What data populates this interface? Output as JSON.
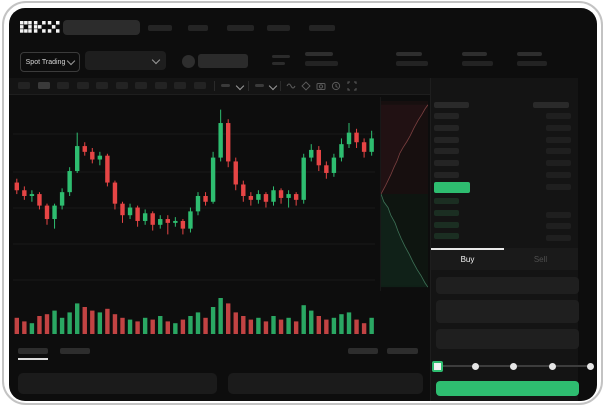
{
  "brand": {
    "name": "OKX"
  },
  "colors": {
    "up_green": "#2ebd70",
    "down_red": "#e64545",
    "bg": "#0d0d0d",
    "panel": "#141414"
  },
  "header": {
    "nav_item_count": 5,
    "search": {
      "placeholder": ""
    }
  },
  "market_bar": {
    "mode_selector_label": "Spot Trading",
    "stat_group_count": 4
  },
  "toolbar": {
    "timeframe_button_count": 10,
    "active_timeframe_index": 1,
    "icon_names": [
      "indicator-wave-icon",
      "draw-tool-icon",
      "camera-icon",
      "alert-icon",
      "fullscreen-icon"
    ]
  },
  "order_book": {
    "view_icons": [
      "orderbook-combined-icon",
      "orderbook-bids-icon",
      "orderbook-asks-icon"
    ],
    "ask_row_count": 6,
    "bid_row_count": 4,
    "last_price_highlight_color": "#2ebd70"
  },
  "trade_panel": {
    "tabs": [
      {
        "label": "Buy"
      },
      {
        "label": "Sell"
      }
    ],
    "active_tab": "Buy",
    "field_count": 3,
    "slider": {
      "stop_count": 5,
      "value_index": 0
    },
    "buy_button": {
      "label": "",
      "color": "#2ebd70"
    }
  },
  "bottom_bar": {
    "left_tab_count": 2,
    "right_tab_count": 2,
    "active_tab_index": 0,
    "panel_count": 2
  },
  "chart_data": {
    "type": "candlestick",
    "title": "",
    "axis_labels_visible": false,
    "grid": "horizontal-only",
    "price_scale": [
      0,
      100
    ],
    "up_color": "#2ebd70",
    "down_color": "#e64545",
    "candles_ohlc": [
      [
        57,
        59,
        51,
        53
      ],
      [
        53,
        55,
        48,
        50
      ],
      [
        50,
        53,
        47,
        51
      ],
      [
        51,
        52,
        43,
        45
      ],
      [
        45,
        46,
        35,
        38
      ],
      [
        38,
        46,
        33,
        45
      ],
      [
        45,
        54,
        43,
        52
      ],
      [
        52,
        65,
        50,
        63
      ],
      [
        63,
        83,
        62,
        76
      ],
      [
        76,
        78,
        71,
        73
      ],
      [
        73,
        75,
        67,
        69
      ],
      [
        69,
        73,
        66,
        71
      ],
      [
        71,
        72,
        55,
        57
      ],
      [
        57,
        58,
        43,
        46
      ],
      [
        46,
        47,
        36,
        40
      ],
      [
        40,
        46,
        38,
        44
      ],
      [
        44,
        45,
        34,
        37
      ],
      [
        37,
        43,
        35,
        41
      ],
      [
        41,
        42,
        32,
        35
      ],
      [
        35,
        40,
        33,
        38
      ],
      [
        38,
        40,
        30,
        36
      ],
      [
        36,
        39,
        34,
        37
      ],
      [
        37,
        38,
        30,
        33
      ],
      [
        33,
        44,
        31,
        42
      ],
      [
        42,
        52,
        40,
        50
      ],
      [
        50,
        52,
        45,
        47
      ],
      [
        47,
        73,
        46,
        70
      ],
      [
        70,
        95,
        68,
        88
      ],
      [
        88,
        90,
        65,
        68
      ],
      [
        68,
        70,
        53,
        56
      ],
      [
        56,
        58,
        47,
        50
      ],
      [
        50,
        52,
        45,
        48
      ],
      [
        48,
        53,
        46,
        51
      ],
      [
        51,
        52,
        44,
        47
      ],
      [
        47,
        55,
        45,
        53
      ],
      [
        53,
        54,
        46,
        49
      ],
      [
        49,
        53,
        44,
        51
      ],
      [
        51,
        52,
        45,
        48
      ],
      [
        48,
        72,
        46,
        70
      ],
      [
        70,
        77,
        68,
        74
      ],
      [
        74,
        76,
        63,
        66
      ],
      [
        66,
        68,
        59,
        62
      ],
      [
        62,
        72,
        60,
        70
      ],
      [
        70,
        80,
        68,
        77
      ],
      [
        77,
        88,
        75,
        83
      ],
      [
        83,
        85,
        75,
        78
      ],
      [
        78,
        80,
        70,
        73
      ],
      [
        73,
        84,
        71,
        80
      ]
    ],
    "volume": [
      9,
      7,
      6,
      10,
      11,
      13,
      9,
      12,
      17,
      15,
      13,
      12,
      14,
      11,
      9,
      8,
      7,
      9,
      8,
      10,
      7,
      6,
      8,
      10,
      12,
      9,
      15,
      20,
      17,
      12,
      10,
      8,
      9,
      7,
      10,
      8,
      9,
      7,
      16,
      13,
      10,
      8,
      9,
      11,
      12,
      8,
      6,
      9
    ],
    "depth_chart": {
      "ask_color": "#7c4040",
      "bid_color": "#3e7257",
      "asks_curve": [
        [
          0,
          0.5
        ],
        [
          0.09,
          0.46
        ],
        [
          0.15,
          0.43
        ],
        [
          0.21,
          0.4
        ],
        [
          0.28,
          0.36
        ],
        [
          0.34,
          0.33
        ],
        [
          0.4,
          0.29
        ],
        [
          0.47,
          0.26
        ],
        [
          0.55,
          0.23
        ],
        [
          0.62,
          0.2
        ],
        [
          0.7,
          0.16
        ],
        [
          0.79,
          0.12
        ],
        [
          0.87,
          0.09
        ],
        [
          0.94,
          0.06
        ],
        [
          1,
          0.04
        ]
      ],
      "bids_curve": [
        [
          0,
          0.5
        ],
        [
          0.06,
          0.54
        ],
        [
          0.15,
          0.57
        ],
        [
          0.21,
          0.61
        ],
        [
          0.3,
          0.65
        ],
        [
          0.36,
          0.69
        ],
        [
          0.43,
          0.73
        ],
        [
          0.51,
          0.77
        ],
        [
          0.6,
          0.81
        ],
        [
          0.68,
          0.85
        ],
        [
          0.77,
          0.89
        ],
        [
          0.85,
          0.92
        ],
        [
          0.94,
          0.96
        ],
        [
          1,
          0.98
        ]
      ]
    }
  }
}
